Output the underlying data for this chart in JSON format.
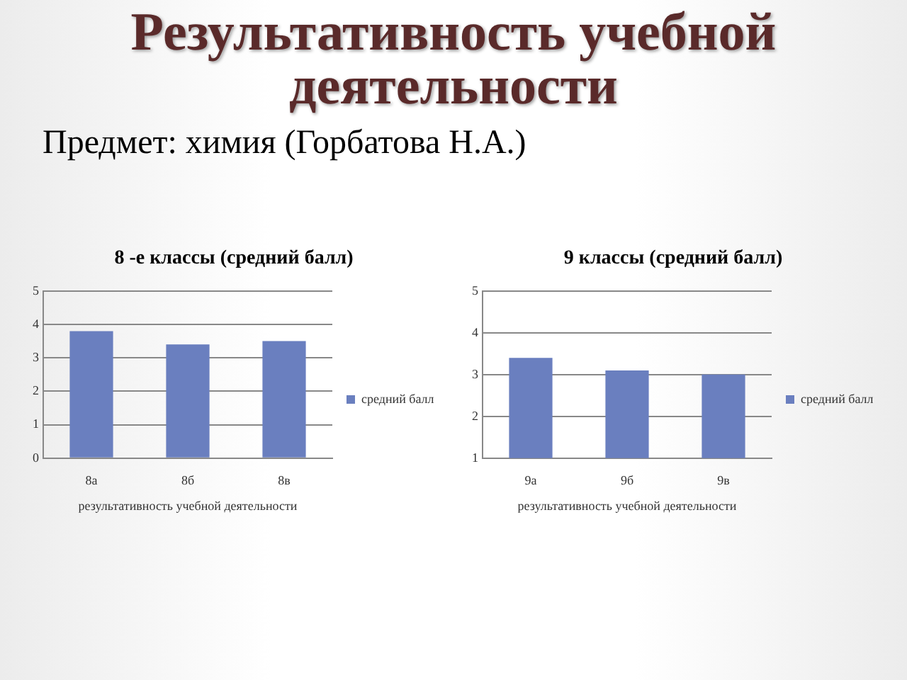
{
  "chart_data": [
    {
      "type": "other",
      "title": "Результативность учебной деятельности",
      "subtitle": "Предмет: химия (Горбатова Н.А.)"
    },
    {
      "type": "bar",
      "title": "8 -е классы (средний балл)",
      "categories": [
        "8а",
        "8б",
        "8в"
      ],
      "series": [
        {
          "name": "средний балл",
          "color": "#6a7fbf",
          "values": [
            3.8,
            3.4,
            3.5
          ]
        }
      ],
      "xlabel": "результативность учебной деятельности",
      "ylim": [
        0,
        5
      ],
      "yticks": [
        0,
        1,
        2,
        3,
        4,
        5
      ],
      "grid": "y",
      "legend": "right"
    },
    {
      "type": "bar",
      "title": "9 классы (средний балл)",
      "categories": [
        "9а",
        "9б",
        "9в"
      ],
      "series": [
        {
          "name": "средний балл",
          "color": "#6a7fbf",
          "values": [
            3.4,
            3.1,
            3.0
          ]
        }
      ],
      "xlabel": "результативность учебной деятельности",
      "ylim": [
        1,
        5
      ],
      "yticks": [
        1,
        2,
        3,
        4,
        5
      ],
      "grid": "y",
      "legend": "right"
    }
  ]
}
